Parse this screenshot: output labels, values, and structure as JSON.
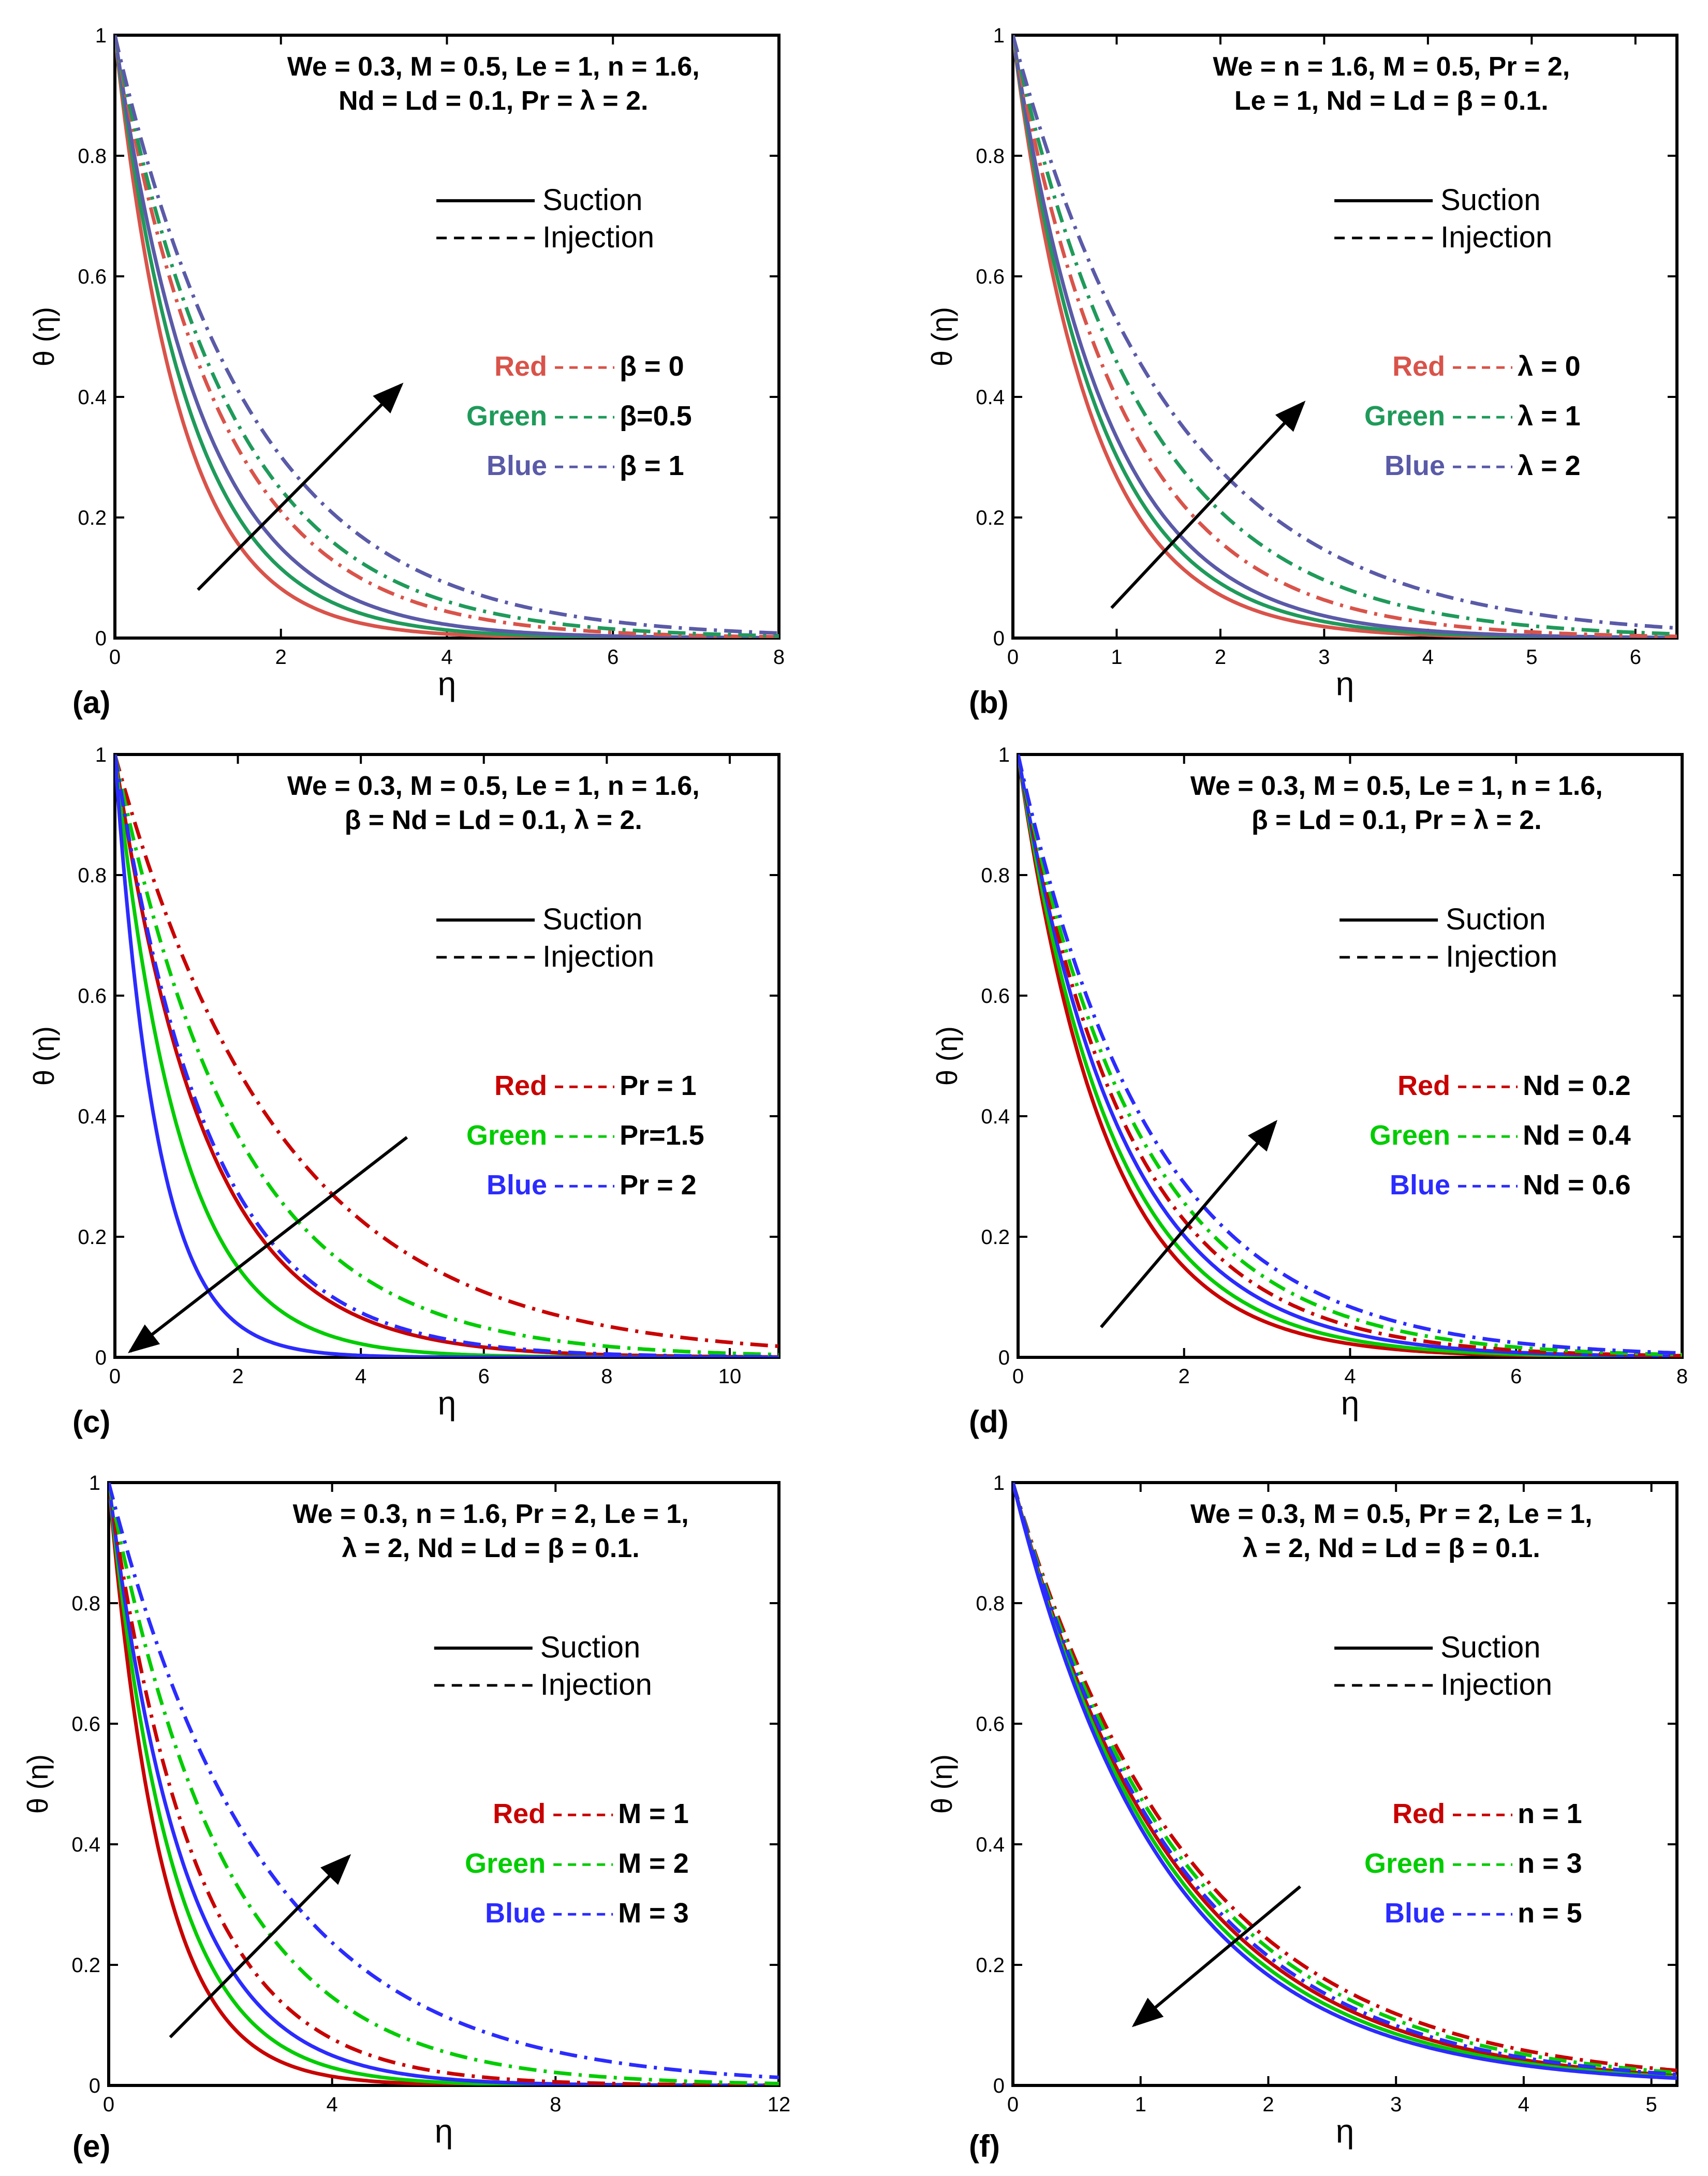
{
  "colors": {
    "red_a": "#d9534a",
    "green_a": "#1f9a5a",
    "blue_a": "#5a5aa8",
    "red": "#c80000",
    "green": "#00cc00",
    "blue": "#2b2bff",
    "black": "#000000"
  },
  "y_axis_label": "θ (η)",
  "x_axis_label": "η",
  "legend": {
    "solid": "Suction",
    "dashed": "Injection"
  },
  "chart_data": [
    {
      "type": "line",
      "panel": "(a)",
      "annotation": [
        "We = 0.3, M = 0.5, Le = 1, n = 1.6,",
        "Nd = Ld = 0.1, Pr = λ = 2."
      ],
      "xlim": [
        0,
        8
      ],
      "ylim": [
        0,
        1
      ],
      "xticks": [
        "0",
        "2",
        "4",
        "6",
        "8"
      ],
      "yticks": [
        "0",
        "0.2",
        "0.4",
        "0.6",
        "0.8",
        "1"
      ],
      "legend_entries": [
        {
          "color_name": "Red",
          "label": "β = 0"
        },
        {
          "color_name": "Green",
          "label": "β=0.5"
        },
        {
          "color_name": "Blue",
          "label": "β = 1"
        }
      ],
      "series": [
        {
          "name": "Red suction",
          "style": "solid",
          "color": "red_a",
          "decay": 1.25
        },
        {
          "name": "Green suction",
          "style": "solid",
          "color": "green_a",
          "decay": 1.08
        },
        {
          "name": "Blue suction",
          "style": "solid",
          "color": "blue_a",
          "decay": 0.95
        },
        {
          "name": "Red injection",
          "style": "dashed",
          "color": "red_a",
          "decay": 0.78
        },
        {
          "name": "Green injection",
          "style": "dashed",
          "color": "green_a",
          "decay": 0.7
        },
        {
          "name": "Blue injection",
          "style": "dashed",
          "color": "blue_a",
          "decay": 0.6
        }
      ],
      "arrow": {
        "from": [
          1.0,
          0.08
        ],
        "to": [
          3.45,
          0.42
        ]
      }
    },
    {
      "type": "line",
      "panel": "(b)",
      "annotation": [
        "We = n = 1.6, M = 0.5, Pr = 2,",
        "Le = 1, Nd = Ld = β = 0.1."
      ],
      "xlim": [
        0,
        6.4
      ],
      "ylim": [
        0,
        1
      ],
      "xticks": [
        "0",
        "1",
        "2",
        "3",
        "4",
        "5",
        "6"
      ],
      "yticks": [
        "0",
        "0.2",
        "0.4",
        "0.6",
        "0.8",
        "1"
      ],
      "legend_entries": [
        {
          "color_name": "Red",
          "label": "λ = 0"
        },
        {
          "color_name": "Green",
          "label": "λ = 1"
        },
        {
          "color_name": "Blue",
          "label": "λ = 2"
        }
      ],
      "series": [
        {
          "name": "Red suction",
          "style": "solid",
          "color": "red_a",
          "decay": 1.32
        },
        {
          "name": "Green suction",
          "style": "solid",
          "color": "green_a",
          "decay": 1.2
        },
        {
          "name": "Blue suction",
          "style": "solid",
          "color": "blue_a",
          "decay": 1.1
        },
        {
          "name": "Red injection",
          "style": "dashed",
          "color": "red_a",
          "decay": 0.92
        },
        {
          "name": "Green injection",
          "style": "dashed",
          "color": "green_a",
          "decay": 0.78
        },
        {
          "name": "Blue injection",
          "style": "dashed",
          "color": "blue_a",
          "decay": 0.64
        }
      ],
      "arrow": {
        "from": [
          0.95,
          0.05
        ],
        "to": [
          2.8,
          0.39
        ]
      }
    },
    {
      "type": "line",
      "panel": "(c)",
      "annotation": [
        "We = 0.3, M = 0.5, Le = 1, n = 1.6,",
        "β = Nd = Ld = 0.1, λ = 2."
      ],
      "xlim": [
        0,
        10.8
      ],
      "ylim": [
        0,
        1
      ],
      "xticks": [
        "0",
        "2",
        "4",
        "6",
        "8",
        "10"
      ],
      "yticks": [
        "0",
        "0.2",
        "0.4",
        "0.6",
        "0.8",
        "1"
      ],
      "legend_entries": [
        {
          "color_name": "Red",
          "label": "Pr = 1"
        },
        {
          "color_name": "Green",
          "label": "Pr=1.5"
        },
        {
          "color_name": "Blue",
          "label": "Pr = 2"
        }
      ],
      "series": [
        {
          "name": "Red suction",
          "style": "solid",
          "color": "red",
          "decay": 0.68
        },
        {
          "name": "Green suction",
          "style": "solid",
          "color": "green",
          "decay": 0.95
        },
        {
          "name": "Blue suction",
          "style": "solid",
          "color": "blue",
          "decay": 1.45
        },
        {
          "name": "Red injection",
          "style": "dashed",
          "color": "red",
          "decay": 0.37
        },
        {
          "name": "Green injection",
          "style": "dashed",
          "color": "green",
          "decay": 0.5
        },
        {
          "name": "Blue injection",
          "style": "dashed",
          "color": "blue",
          "decay": 0.65
        }
      ],
      "arrow": {
        "from": [
          4.75,
          0.365
        ],
        "to": [
          0.25,
          0.01
        ]
      }
    },
    {
      "type": "line",
      "panel": "(d)",
      "annotation": [
        "We = 0.3, M = 0.5, Le = 1, n = 1.6,",
        "β = Ld = 0.1, Pr = λ = 2."
      ],
      "xlim": [
        0,
        8
      ],
      "ylim": [
        0,
        1
      ],
      "xticks": [
        "0",
        "2",
        "4",
        "6",
        "8"
      ],
      "yticks": [
        "0",
        "0.2",
        "0.4",
        "0.6",
        "0.8",
        "1"
      ],
      "legend_entries": [
        {
          "color_name": "Red",
          "label": "Nd = 0.2"
        },
        {
          "color_name": "Green",
          "label": "Nd = 0.4"
        },
        {
          "color_name": "Blue",
          "label": "Nd = 0.6"
        }
      ],
      "series": [
        {
          "name": "Red suction",
          "style": "solid",
          "color": "red",
          "decay": 0.95
        },
        {
          "name": "Green suction",
          "style": "solid",
          "color": "green",
          "decay": 0.88
        },
        {
          "name": "Blue suction",
          "style": "solid",
          "color": "blue",
          "decay": 0.8
        },
        {
          "name": "Red injection",
          "style": "dashed",
          "color": "red",
          "decay": 0.74
        },
        {
          "name": "Green injection",
          "style": "dashed",
          "color": "green",
          "decay": 0.68
        },
        {
          "name": "Blue injection",
          "style": "dashed",
          "color": "blue",
          "decay": 0.62
        }
      ],
      "arrow": {
        "from": [
          1.0,
          0.05
        ],
        "to": [
          3.1,
          0.39
        ]
      }
    },
    {
      "type": "line",
      "panel": "(e)",
      "annotation": [
        "We = 0.3, n = 1.6, Pr = 2,  Le = 1,",
        "λ = 2, Nd = Ld = β = 0.1."
      ],
      "xlim": [
        0,
        12
      ],
      "ylim": [
        0,
        1
      ],
      "xticks": [
        "0",
        "4",
        "8",
        "12"
      ],
      "yticks": [
        "0",
        "0.2",
        "0.4",
        "0.6",
        "0.8",
        "1"
      ],
      "legend_entries": [
        {
          "color_name": "Red",
          "label": "M = 1"
        },
        {
          "color_name": "Green",
          "label": "M = 2"
        },
        {
          "color_name": "Blue",
          "label": "M = 3"
        }
      ],
      "series": [
        {
          "name": "Red suction",
          "style": "solid",
          "color": "red",
          "decay": 1.05
        },
        {
          "name": "Green suction",
          "style": "solid",
          "color": "green",
          "decay": 0.88
        },
        {
          "name": "Blue suction",
          "style": "solid",
          "color": "blue",
          "decay": 0.75
        },
        {
          "name": "Red injection",
          "style": "dashed",
          "color": "red",
          "decay": 0.64
        },
        {
          "name": "Green injection",
          "style": "dashed",
          "color": "green",
          "decay": 0.48
        },
        {
          "name": "Blue injection",
          "style": "dashed",
          "color": "blue",
          "decay": 0.36
        }
      ],
      "arrow": {
        "from": [
          1.1,
          0.08
        ],
        "to": [
          4.3,
          0.38
        ]
      }
    },
    {
      "type": "line",
      "panel": "(f)",
      "annotation": [
        "We = 0.3, M = 0.5, Pr = 2,  Le = 1,",
        "λ = 2, Nd = Ld = β = 0.1."
      ],
      "xlim": [
        0,
        5.2
      ],
      "ylim": [
        0,
        1
      ],
      "xticks": [
        "0",
        "1",
        "2",
        "3",
        "4",
        "5"
      ],
      "yticks": [
        "0",
        "0.2",
        "0.4",
        "0.6",
        "0.8",
        "1"
      ],
      "legend_entries": [
        {
          "color_name": "Red",
          "label": "n = 1"
        },
        {
          "color_name": "Green",
          "label": "n = 3"
        },
        {
          "color_name": "Blue",
          "label": "n = 5"
        }
      ],
      "series": [
        {
          "name": "Red suction",
          "style": "solid",
          "color": "red",
          "decay": 0.79
        },
        {
          "name": "Green suction",
          "style": "solid",
          "color": "green",
          "decay": 0.82
        },
        {
          "name": "Blue suction",
          "style": "solid",
          "color": "blue",
          "decay": 0.85
        },
        {
          "name": "Red injection",
          "style": "dashed",
          "color": "red",
          "decay": 0.71
        },
        {
          "name": "Green injection",
          "style": "dashed",
          "color": "green",
          "decay": 0.74
        },
        {
          "name": "Blue injection",
          "style": "dashed",
          "color": "blue",
          "decay": 0.77
        }
      ],
      "arrow": {
        "from": [
          2.25,
          0.33
        ],
        "to": [
          0.95,
          0.1
        ]
      }
    }
  ]
}
